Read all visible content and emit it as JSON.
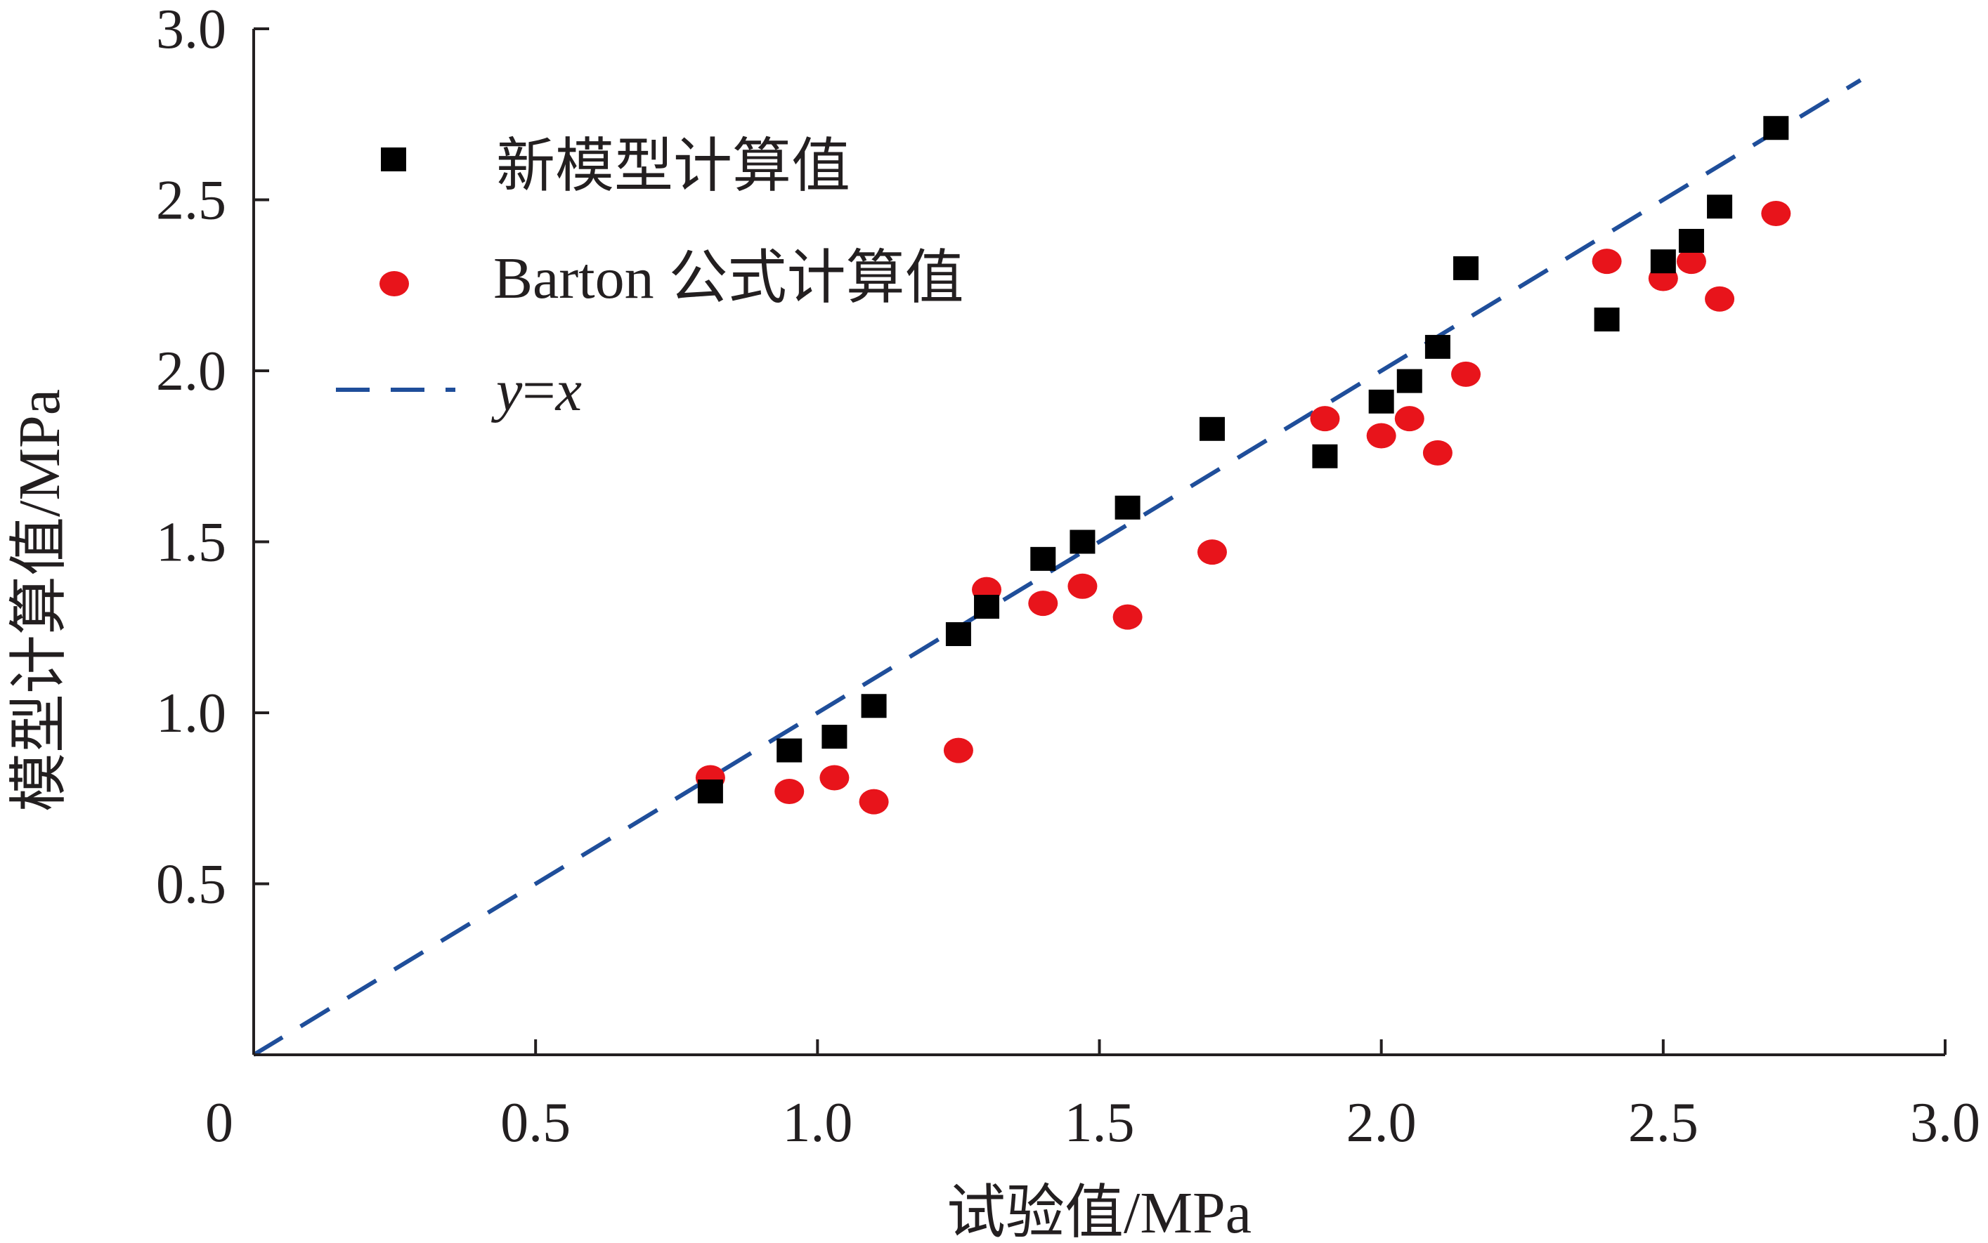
{
  "chart_data": {
    "type": "scatter",
    "title": "",
    "xlabel": "试验值/MPa",
    "ylabel": "模型计算值/MPa",
    "xlim": [
      0,
      3.0
    ],
    "ylim": [
      0,
      3.0
    ],
    "x_ticks": [
      0.5,
      1.0,
      1.5,
      2.0,
      2.5,
      3.0
    ],
    "x_tick_labels": [
      "0.5",
      "1.0",
      "1.5",
      "2.0",
      "2.5",
      "3.0"
    ],
    "y_ticks": [
      0.5,
      1.0,
      1.5,
      2.0,
      2.5,
      3.0
    ],
    "y_tick_labels": [
      "0.5",
      "1.0",
      "1.5",
      "2.0",
      "2.5",
      "3.0"
    ],
    "origin_label": "0",
    "grid": false,
    "legend_position": "top-left",
    "series": [
      {
        "name": "新模型计算值",
        "marker": "square",
        "color": "#000000",
        "points": [
          [
            0.81,
            0.77
          ],
          [
            0.95,
            0.89
          ],
          [
            1.03,
            0.93
          ],
          [
            1.1,
            1.02
          ],
          [
            1.25,
            1.23
          ],
          [
            1.3,
            1.31
          ],
          [
            1.4,
            1.45
          ],
          [
            1.47,
            1.5
          ],
          [
            1.55,
            1.6
          ],
          [
            1.7,
            1.83
          ],
          [
            1.9,
            1.75
          ],
          [
            2.0,
            1.91
          ],
          [
            2.05,
            1.97
          ],
          [
            2.1,
            2.07
          ],
          [
            2.15,
            2.3
          ],
          [
            2.4,
            2.15
          ],
          [
            2.5,
            2.32
          ],
          [
            2.55,
            2.38
          ],
          [
            2.6,
            2.48
          ],
          [
            2.7,
            2.71
          ]
        ]
      },
      {
        "name_prefix": "Barton",
        "name_suffix": "公式计算值",
        "marker": "ellipse",
        "color": "#e8141b",
        "points": [
          [
            0.81,
            0.81
          ],
          [
            0.95,
            0.77
          ],
          [
            1.03,
            0.81
          ],
          [
            1.1,
            0.74
          ],
          [
            1.25,
            0.89
          ],
          [
            1.3,
            1.36
          ],
          [
            1.4,
            1.32
          ],
          [
            1.47,
            1.37
          ],
          [
            1.55,
            1.28
          ],
          [
            1.7,
            1.47
          ],
          [
            1.9,
            1.86
          ],
          [
            2.0,
            1.81
          ],
          [
            2.05,
            1.86
          ],
          [
            2.1,
            1.76
          ],
          [
            2.15,
            1.99
          ],
          [
            2.4,
            2.32
          ],
          [
            2.5,
            2.27
          ],
          [
            2.55,
            2.32
          ],
          [
            2.6,
            2.21
          ],
          [
            2.7,
            2.46
          ]
        ]
      },
      {
        "name_y": "y",
        "name_eq": "=",
        "name_x": "x",
        "line_style": "dashed",
        "color": "#1f4e9a",
        "x": [
          0,
          2.85
        ],
        "y": [
          0,
          2.85
        ]
      }
    ]
  }
}
